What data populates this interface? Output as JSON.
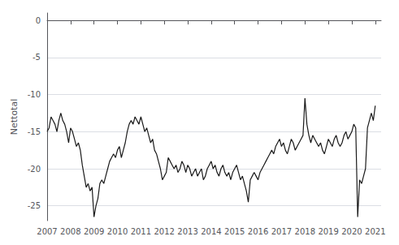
{
  "chart_data": {
    "type": "line",
    "ylabel": "Nettotal",
    "xlim": [
      2007.0,
      2021.25
    ],
    "ylim": [
      -27,
      1
    ],
    "xticks": [
      2007,
      2008,
      2009,
      2010,
      2011,
      2012,
      2013,
      2014,
      2015,
      2016,
      2017,
      2018,
      2019,
      2020,
      2021
    ],
    "yticks": [
      0,
      -5,
      -10,
      -15,
      -20,
      -25
    ],
    "color": "#1a1a1a",
    "grid": true,
    "x": [
      2007.0,
      2007.083,
      2007.167,
      2007.25,
      2007.333,
      2007.417,
      2007.5,
      2007.583,
      2007.667,
      2007.75,
      2007.833,
      2007.917,
      2008.0,
      2008.083,
      2008.167,
      2008.25,
      2008.333,
      2008.417,
      2008.5,
      2008.583,
      2008.667,
      2008.75,
      2008.833,
      2008.917,
      2009.0,
      2009.083,
      2009.167,
      2009.25,
      2009.333,
      2009.417,
      2009.5,
      2009.583,
      2009.667,
      2009.75,
      2009.833,
      2009.917,
      2010.0,
      2010.083,
      2010.167,
      2010.25,
      2010.333,
      2010.417,
      2010.5,
      2010.583,
      2010.667,
      2010.75,
      2010.833,
      2010.917,
      2011.0,
      2011.083,
      2011.167,
      2011.25,
      2011.333,
      2011.417,
      2011.5,
      2011.583,
      2011.667,
      2011.75,
      2011.833,
      2011.917,
      2012.0,
      2012.083,
      2012.167,
      2012.25,
      2012.333,
      2012.417,
      2012.5,
      2012.583,
      2012.667,
      2012.75,
      2012.833,
      2012.917,
      2013.0,
      2013.083,
      2013.167,
      2013.25,
      2013.333,
      2013.417,
      2013.5,
      2013.583,
      2013.667,
      2013.75,
      2013.833,
      2013.917,
      2014.0,
      2014.083,
      2014.167,
      2014.25,
      2014.333,
      2014.417,
      2014.5,
      2014.583,
      2014.667,
      2014.75,
      2014.833,
      2014.917,
      2015.0,
      2015.083,
      2015.167,
      2015.25,
      2015.333,
      2015.417,
      2015.5,
      2015.583,
      2015.667,
      2015.75,
      2015.833,
      2015.917,
      2016.0,
      2016.083,
      2016.167,
      2016.25,
      2016.333,
      2016.417,
      2016.5,
      2016.583,
      2016.667,
      2016.75,
      2016.833,
      2016.917,
      2017.0,
      2017.083,
      2017.167,
      2017.25,
      2017.333,
      2017.417,
      2017.5,
      2017.583,
      2017.667,
      2017.75,
      2017.833,
      2017.917,
      2018.0,
      2018.083,
      2018.167,
      2018.25,
      2018.333,
      2018.417,
      2018.5,
      2018.583,
      2018.667,
      2018.75,
      2018.833,
      2018.917,
      2019.0,
      2019.083,
      2019.167,
      2019.25,
      2019.333,
      2019.417,
      2019.5,
      2019.583,
      2019.667,
      2019.75,
      2019.833,
      2019.917,
      2020.0,
      2020.083,
      2020.167,
      2020.25,
      2020.333,
      2020.417,
      2020.5,
      2020.583,
      2020.667,
      2020.75,
      2020.833,
      2020.917,
      2021.0
    ],
    "values": [
      -15.0,
      -14.5,
      -13.0,
      -13.5,
      -14.0,
      -15.0,
      -13.5,
      -12.5,
      -13.5,
      -14.0,
      -15.0,
      -16.5,
      -14.5,
      -15.0,
      -16.0,
      -17.0,
      -16.5,
      -17.5,
      -19.5,
      -21.0,
      -22.5,
      -22.0,
      -23.0,
      -22.5,
      -26.5,
      -25.0,
      -24.0,
      -22.0,
      -21.5,
      -22.0,
      -21.0,
      -20.0,
      -19.0,
      -18.5,
      -18.0,
      -18.5,
      -17.5,
      -17.0,
      -18.5,
      -17.5,
      -16.5,
      -15.0,
      -14.0,
      -13.5,
      -14.0,
      -13.0,
      -13.5,
      -14.0,
      -13.0,
      -14.0,
      -15.0,
      -14.5,
      -15.5,
      -16.5,
      -16.0,
      -17.5,
      -18.0,
      -19.0,
      -20.0,
      -21.5,
      -21.0,
      -20.5,
      -18.5,
      -19.0,
      -19.5,
      -20.0,
      -19.5,
      -20.5,
      -20.0,
      -19.0,
      -19.5,
      -20.5,
      -19.5,
      -20.0,
      -21.0,
      -20.5,
      -20.0,
      -21.0,
      -20.5,
      -20.0,
      -21.5,
      -21.0,
      -20.0,
      -19.5,
      -19.0,
      -20.0,
      -19.5,
      -20.5,
      -21.0,
      -20.0,
      -19.5,
      -20.5,
      -21.0,
      -20.5,
      -21.5,
      -20.5,
      -20.0,
      -19.5,
      -20.5,
      -21.5,
      -21.0,
      -22.0,
      -23.0,
      -24.5,
      -21.5,
      -21.0,
      -20.5,
      -21.0,
      -21.5,
      -20.5,
      -20.0,
      -19.5,
      -19.0,
      -18.5,
      -18.0,
      -17.5,
      -18.0,
      -17.0,
      -16.5,
      -16.0,
      -17.0,
      -16.5,
      -17.5,
      -18.0,
      -17.0,
      -16.0,
      -16.5,
      -17.5,
      -17.0,
      -16.5,
      -16.0,
      -15.5,
      -10.5,
      -14.0,
      -15.5,
      -16.5,
      -15.5,
      -16.0,
      -16.5,
      -17.0,
      -16.5,
      -17.5,
      -18.0,
      -17.0,
      -16.0,
      -16.5,
      -17.0,
      -16.0,
      -15.5,
      -16.5,
      -17.0,
      -16.5,
      -15.5,
      -15.0,
      -16.0,
      -15.5,
      -15.0,
      -14.0,
      -14.5,
      -26.5,
      -21.5,
      -22.0,
      -21.0,
      -20.0,
      -14.5,
      -13.5,
      -12.5,
      -13.5,
      -11.5
    ]
  }
}
